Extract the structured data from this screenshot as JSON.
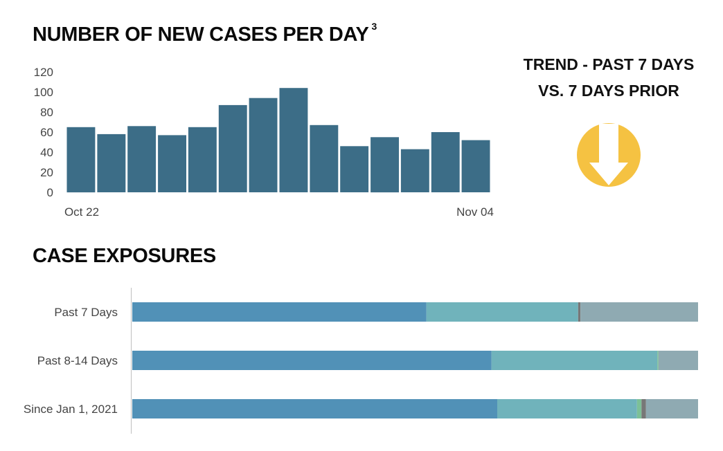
{
  "cases_title": "NUMBER OF NEW CASES PER DAY",
  "cases_title_footnote": "3",
  "trend": {
    "line1": "TREND - PAST 7 DAYS",
    "line2": "VS. 7 DAYS PRIOR",
    "direction": "down",
    "icon": "down-arrow-icon",
    "icon_color": "#f5c242"
  },
  "exposures_title": "CASE EXPOSURES",
  "colors": {
    "bar": "#3c6d87",
    "exposure_segments": [
      "#5191b7",
      "#70b3bb",
      "#7cc097",
      "#777777",
      "#8faab2"
    ]
  },
  "chart_data": [
    {
      "type": "bar",
      "title": "NUMBER OF NEW CASES PER DAY",
      "x_tick_labels": [
        "Oct 22",
        "Nov 04"
      ],
      "values": [
        65,
        58,
        66,
        57,
        65,
        87,
        94,
        104,
        67,
        46,
        55,
        43,
        60,
        52
      ],
      "y_ticks": [
        0,
        20,
        40,
        60,
        80,
        100,
        120
      ],
      "ylim": [
        0,
        120
      ],
      "grid": false
    },
    {
      "type": "bar",
      "orientation": "horizontal",
      "stacked": true,
      "percent": true,
      "title": "CASE EXPOSURES",
      "categories": [
        "Past 7 Days",
        "Past 8-14 Days",
        "Since Jan 1, 2021"
      ],
      "series": [
        {
          "values": [
            52,
            63.5,
            64.5
          ]
        },
        {
          "values": [
            26.8,
            29.3,
            24.7
          ]
        },
        {
          "values": [
            0,
            0.2,
            0.8
          ]
        },
        {
          "values": [
            0.4,
            0,
            0.8
          ]
        },
        {
          "values": [
            20.8,
            7,
            9.2
          ]
        }
      ]
    }
  ]
}
